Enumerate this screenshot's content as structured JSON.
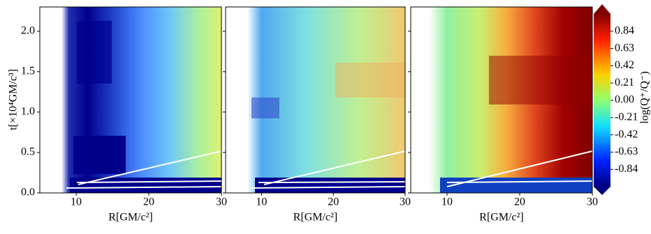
{
  "chart_data": [
    {
      "type": "heatmap",
      "xlabel": "R[GM/c²]",
      "ylabel": "t[×10⁴GM/c³]",
      "xlim": [
        5,
        30
      ],
      "xticks": [
        10,
        20,
        30
      ],
      "ylim": [
        0,
        2.3
      ],
      "yticks": [
        {
          "value": 0,
          "label": "0.0"
        },
        0.5,
        {
          "value": 1,
          "label": "1.0"
        },
        1.5,
        {
          "value": 2,
          "label": "2.0"
        }
      ]
    },
    {
      "type": "heatmap",
      "xlabel": "R[GM/c²]",
      "xlim": [
        5,
        30
      ],
      "xticks": [
        10,
        20,
        30
      ]
    },
    {
      "type": "heatmap",
      "xlabel": "R[GM/c²]",
      "xlim": [
        5,
        30
      ],
      "xticks": [
        10,
        20,
        30
      ],
      "colorbar": {
        "label": "log(Q⁺/Q⁻)",
        "lim": [
          -1.05,
          1.05
        ],
        "ticks": [
          0.84,
          0.63,
          0.42,
          0.21,
          {
            "value": 0,
            "label": "0.00"
          },
          -0.21,
          -0.42,
          -0.63,
          -0.84
        ]
      }
    }
  ]
}
